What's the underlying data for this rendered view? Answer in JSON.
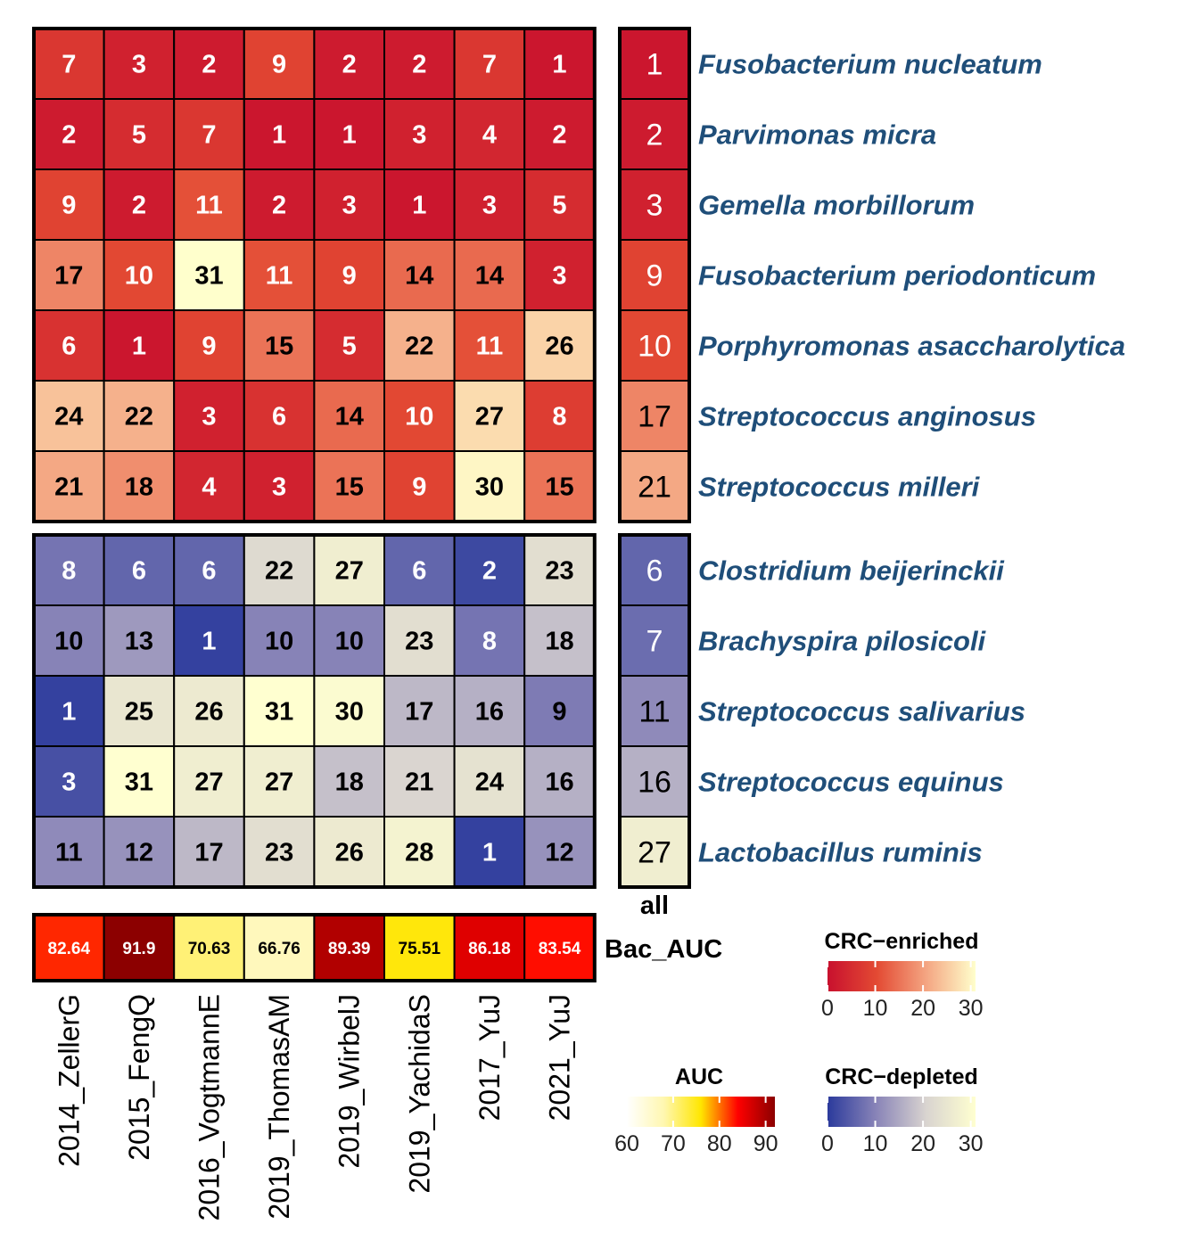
{
  "chart_data": {
    "type": "heatmap",
    "columns": [
      "2014_ZellerG",
      "2015_FengQ",
      "2016_VogtmannE",
      "2019_ThomasAM",
      "2019_WirbelJ",
      "2019_YachidaS",
      "2017_YuJ",
      "2021_YuJ"
    ],
    "all_label": "all",
    "enriched": {
      "rows": [
        "Fusobacterium nucleatum",
        "Parvimonas micra",
        "Gemella morbillorum",
        "Fusobacterium periodonticum",
        "Porphyromonas asaccharolytica",
        "Streptococcus anginosus",
        "Streptococcus milleri"
      ],
      "values": [
        [
          7,
          3,
          2,
          9,
          2,
          2,
          7,
          1
        ],
        [
          2,
          5,
          7,
          1,
          1,
          3,
          4,
          2
        ],
        [
          9,
          2,
          11,
          2,
          3,
          1,
          3,
          5
        ],
        [
          17,
          10,
          31,
          11,
          9,
          14,
          14,
          3
        ],
        [
          6,
          1,
          9,
          15,
          5,
          22,
          11,
          26
        ],
        [
          24,
          22,
          3,
          6,
          14,
          10,
          27,
          8
        ],
        [
          21,
          18,
          4,
          3,
          15,
          9,
          30,
          15
        ]
      ],
      "all": [
        1,
        2,
        3,
        9,
        10,
        17,
        21
      ]
    },
    "depleted": {
      "rows": [
        "Clostridium beijerinckii",
        "Brachyspira pilosicoli",
        "Streptococcus salivarius",
        "Streptococcus equinus",
        "Lactobacillus ruminis"
      ],
      "values": [
        [
          8,
          6,
          6,
          22,
          27,
          6,
          2,
          23
        ],
        [
          10,
          13,
          1,
          10,
          10,
          23,
          8,
          18
        ],
        [
          1,
          25,
          26,
          31,
          30,
          17,
          16,
          9
        ],
        [
          3,
          31,
          27,
          27,
          18,
          21,
          24,
          16
        ],
        [
          11,
          12,
          17,
          23,
          26,
          28,
          1,
          12
        ]
      ],
      "all": [
        6,
        7,
        11,
        16,
        27
      ]
    },
    "auc": {
      "row_label": "Bac_AUC",
      "values": [
        "82.64",
        "91.9",
        "70.63",
        "66.76",
        "89.39",
        "75.51",
        "86.18",
        "83.54"
      ]
    },
    "legends": {
      "enriched": {
        "title": "CRC−enriched",
        "ticks": [
          "0",
          "10",
          "20",
          "30"
        ],
        "range": [
          0,
          31
        ],
        "colors": [
          "#c8102e",
          "#e34a33",
          "#f4a582",
          "#ffffcc"
        ]
      },
      "depleted": {
        "title": "CRC−depleted",
        "ticks": [
          "0",
          "10",
          "20",
          "30"
        ],
        "range": [
          0,
          31
        ],
        "colors": [
          "#2b3a9c",
          "#8a85b8",
          "#d9d4d0",
          "#ffffd0"
        ]
      },
      "auc": {
        "title": "AUC",
        "ticks": [
          "60",
          "70",
          "80",
          "90"
        ],
        "range": [
          60,
          92
        ],
        "colors": [
          "#ffffff",
          "#fff7b0",
          "#ffe600",
          "#ff0000",
          "#8b0000"
        ]
      }
    }
  }
}
